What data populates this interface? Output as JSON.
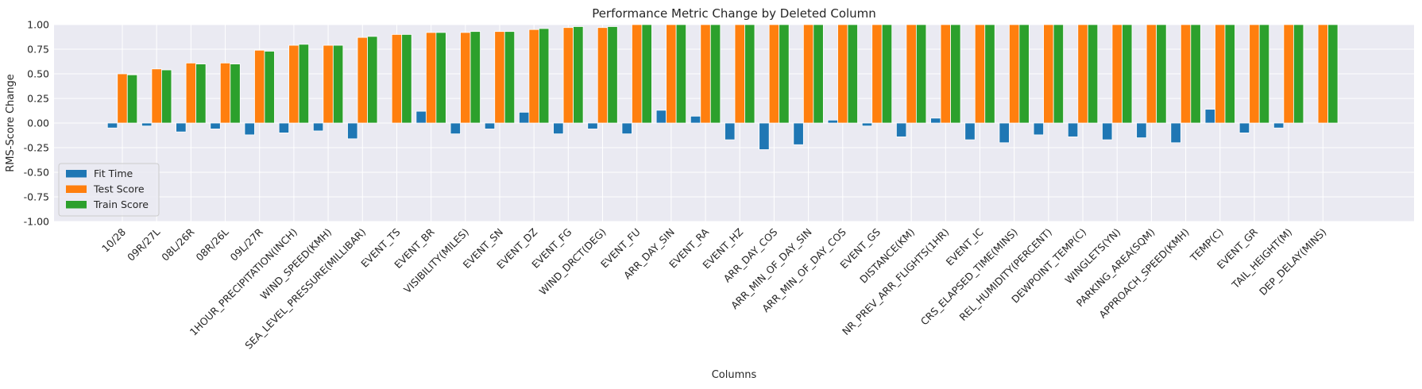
{
  "chart_data": {
    "type": "bar",
    "title": "Performance Metric Change by Deleted Column",
    "xlabel": "Columns",
    "ylabel": "RMS-Score Change",
    "ylim": [
      -1.0,
      1.0
    ],
    "yticks": [
      "-1.00",
      "-0.75",
      "-0.50",
      "-0.25",
      "0.00",
      "0.25",
      "0.50",
      "0.75",
      "1.00"
    ],
    "grid": true,
    "legend_position": "lower-left",
    "categories": [
      "10/28",
      "09R/27L",
      "08L/26R",
      "08R/26L",
      "09L/27R",
      "1HOUR_PRECIPITATION(INCH)",
      "WIND_SPEED(KMH)",
      "SEA_LEVEL_PRESSURE(MILLIBAR)",
      "EVENT_TS",
      "EVENT_BR",
      "VISIBILITY(MILES)",
      "EVENT_SN",
      "EVENT_DZ",
      "EVENT_FG",
      "WIND_DRCT(DEG)",
      "EVENT_FU",
      "ARR_DAY_SIN",
      "EVENT_RA",
      "EVENT_HZ",
      "ARR_DAY_COS",
      "ARR_MIN_OF_DAY_SIN",
      "ARR_MIN_OF_DAY_COS",
      "EVENT_GS",
      "DISTANCE(KM)",
      "NR_PREV_ARR_FLIGHTS(1HR)",
      "EVENT_IC",
      "CRS_ELAPSED_TIME(MINS)",
      "REL_HUMIDITY(PERCENT)",
      "DEWPOINT_TEMP(C)",
      "WINGLETS(YN)",
      "PARKING_AREA(SQM)",
      "APPROACH_SPEED(KMH)",
      "TEMP(C)",
      "EVENT_GR",
      "TAIL_HEIGHT(M)",
      "DEP_DELAY(MINS)"
    ],
    "series": [
      {
        "name": "Fit Time",
        "color": "#1f77b4",
        "values": [
          -0.05,
          -0.03,
          -0.09,
          -0.06,
          -0.12,
          -0.1,
          -0.08,
          -0.16,
          0.0,
          0.12,
          -0.11,
          -0.06,
          0.11,
          -0.11,
          -0.06,
          -0.11,
          0.13,
          0.07,
          -0.17,
          -0.27,
          -0.22,
          0.03,
          -0.03,
          -0.14,
          0.05,
          -0.17,
          -0.2,
          -0.12,
          -0.14,
          -0.17,
          -0.15,
          -0.2,
          0.14,
          -0.1,
          -0.05,
          0.0
        ]
      },
      {
        "name": "Test Score",
        "color": "#ff7f0e",
        "values": [
          0.5,
          0.55,
          0.61,
          0.61,
          0.74,
          0.79,
          0.79,
          0.87,
          0.9,
          0.92,
          0.92,
          0.93,
          0.95,
          0.97,
          0.97,
          1.0,
          1.0,
          1.0,
          1.0,
          1.0,
          1.0,
          1.0,
          1.0,
          1.0,
          1.0,
          1.0,
          1.0,
          1.0,
          1.0,
          1.0,
          1.0,
          1.0,
          1.0,
          1.0,
          1.0,
          1.0
        ]
      },
      {
        "name": "Train Score",
        "color": "#2ca02c",
        "values": [
          0.49,
          0.54,
          0.6,
          0.6,
          0.73,
          0.8,
          0.79,
          0.88,
          0.9,
          0.92,
          0.93,
          0.93,
          0.96,
          0.98,
          0.98,
          1.0,
          1.0,
          1.0,
          1.0,
          1.0,
          1.0,
          1.0,
          1.0,
          1.0,
          1.0,
          1.0,
          1.0,
          1.0,
          1.0,
          1.0,
          1.0,
          1.0,
          1.0,
          1.0,
          1.0,
          1.0
        ]
      }
    ]
  }
}
